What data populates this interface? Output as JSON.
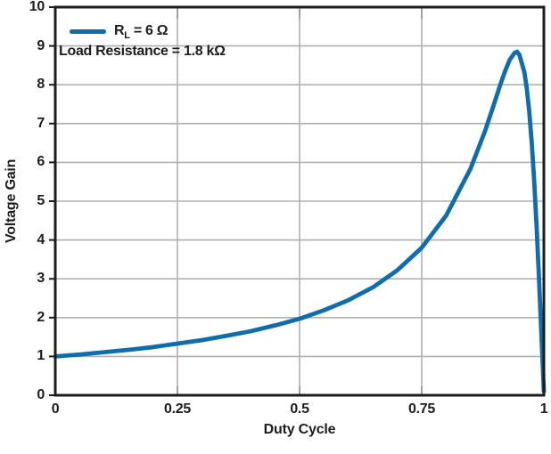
{
  "chart_data": {
    "type": "line",
    "title": "",
    "xlabel": "Duty Cycle",
    "ylabel": "Voltage Gain",
    "xlim": [
      0,
      1
    ],
    "ylim": [
      0,
      10
    ],
    "grid": true,
    "legend_position": "top-left",
    "xticks": [
      0,
      0.25,
      0.5,
      0.75,
      1
    ],
    "xtick_labels": [
      "0",
      "0.25",
      "0.5",
      "0.75",
      "1"
    ],
    "yticks": [
      0,
      1,
      2,
      3,
      4,
      5,
      6,
      7,
      8,
      9,
      10
    ],
    "ytick_labels": [
      "0",
      "1",
      "2",
      "3",
      "4",
      "5",
      "6",
      "7",
      "8",
      "9",
      "10"
    ],
    "legend": {
      "series_label_main": "R",
      "series_label_sub": "L",
      "series_label_rest": " = 6 Ω",
      "annotation": "Load Resistance = 1.8 kΩ"
    },
    "series": [
      {
        "name": "RL = 6 Ω",
        "color": "#0f6cad",
        "x": [
          0,
          0.05,
          0.1,
          0.15,
          0.2,
          0.25,
          0.3,
          0.35,
          0.4,
          0.45,
          0.5,
          0.55,
          0.6,
          0.65,
          0.7,
          0.75,
          0.8,
          0.85,
          0.88,
          0.9,
          0.91,
          0.92,
          0.93,
          0.94,
          0.945,
          0.95,
          0.96,
          0.965,
          0.97,
          0.975,
          0.98,
          0.985,
          0.99,
          0.995,
          1.0
        ],
        "y": [
          1.0,
          1.05,
          1.11,
          1.17,
          1.24,
          1.33,
          1.42,
          1.53,
          1.65,
          1.8,
          1.97,
          2.19,
          2.45,
          2.78,
          3.22,
          3.8,
          4.63,
          5.84,
          6.82,
          7.58,
          7.97,
          8.33,
          8.64,
          8.82,
          8.85,
          8.77,
          8.33,
          7.91,
          7.32,
          6.54,
          5.56,
          4.38,
          3.03,
          1.55,
          0.1
        ]
      }
    ],
    "colors": {
      "line": "#0f6cad",
      "grid": "#b0b0b0",
      "inner_tick": "#9a9a9a",
      "axis": "#1d1d1b",
      "text": "#1d1d1b",
      "background": "#ffffff"
    }
  }
}
